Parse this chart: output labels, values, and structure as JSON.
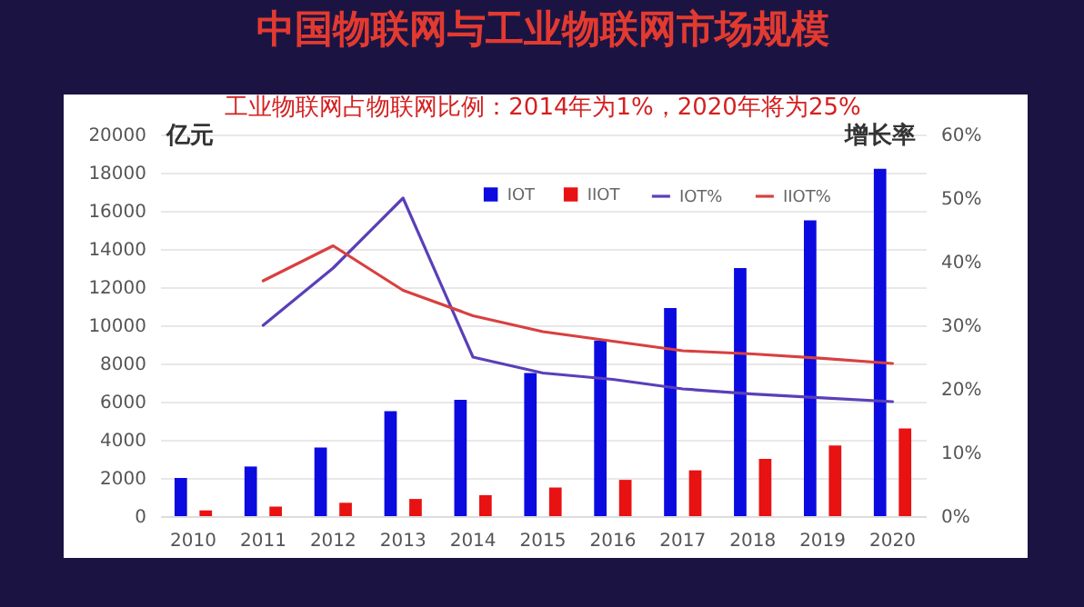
{
  "chart_data": {
    "type": "bar",
    "title": "中国物联网与工业物联网市场规模",
    "subtitle": "工业物联网占物联网比例：2014年为1%，2020年将为25%",
    "ylabel": "亿元",
    "y2label": "增长率",
    "categories": [
      "2010",
      "2011",
      "2012",
      "2013",
      "2014",
      "2015",
      "2016",
      "2017",
      "2018",
      "2019",
      "2020"
    ],
    "series": [
      {
        "name": "IOT",
        "color": "#0b0be0",
        "values": [
          2000,
          2600,
          3600,
          5500,
          6100,
          7500,
          9200,
          10900,
          13000,
          15500,
          18200
        ]
      },
      {
        "name": "IIOT",
        "color": "#e81212",
        "values": [
          300,
          500,
          700,
          900,
          1100,
          1500,
          1900,
          2400,
          3000,
          3700,
          4600
        ]
      },
      {
        "name": "IOT%",
        "type": "line",
        "axis": "y2",
        "color": "#5a3fb8",
        "values": [
          null,
          30,
          39,
          50,
          25,
          22.5,
          21.5,
          20,
          19.2,
          18.6,
          18
        ]
      },
      {
        "name": "IIOT%",
        "type": "line",
        "axis": "y2",
        "color": "#d84040",
        "values": [
          null,
          37,
          42.5,
          35.5,
          31.5,
          29,
          27.5,
          26,
          25.5,
          24.8,
          24
        ]
      }
    ],
    "ylim": [
      0,
      20000
    ],
    "yticks": [
      0,
      2000,
      4000,
      6000,
      8000,
      10000,
      12000,
      14000,
      16000,
      18000,
      20000
    ],
    "y2lim": [
      0,
      60
    ],
    "y2ticks": [
      {
        "value": 0,
        "label": "0%"
      },
      {
        "value": 10,
        "label": "10%"
      },
      {
        "value": 20,
        "label": "20%"
      },
      {
        "value": 30,
        "label": "30%"
      },
      {
        "value": 40,
        "label": "40%"
      },
      {
        "value": 50,
        "label": "50%"
      },
      {
        "value": 60,
        "label": "60%"
      }
    ],
    "grid": "y",
    "legend": "top right"
  }
}
